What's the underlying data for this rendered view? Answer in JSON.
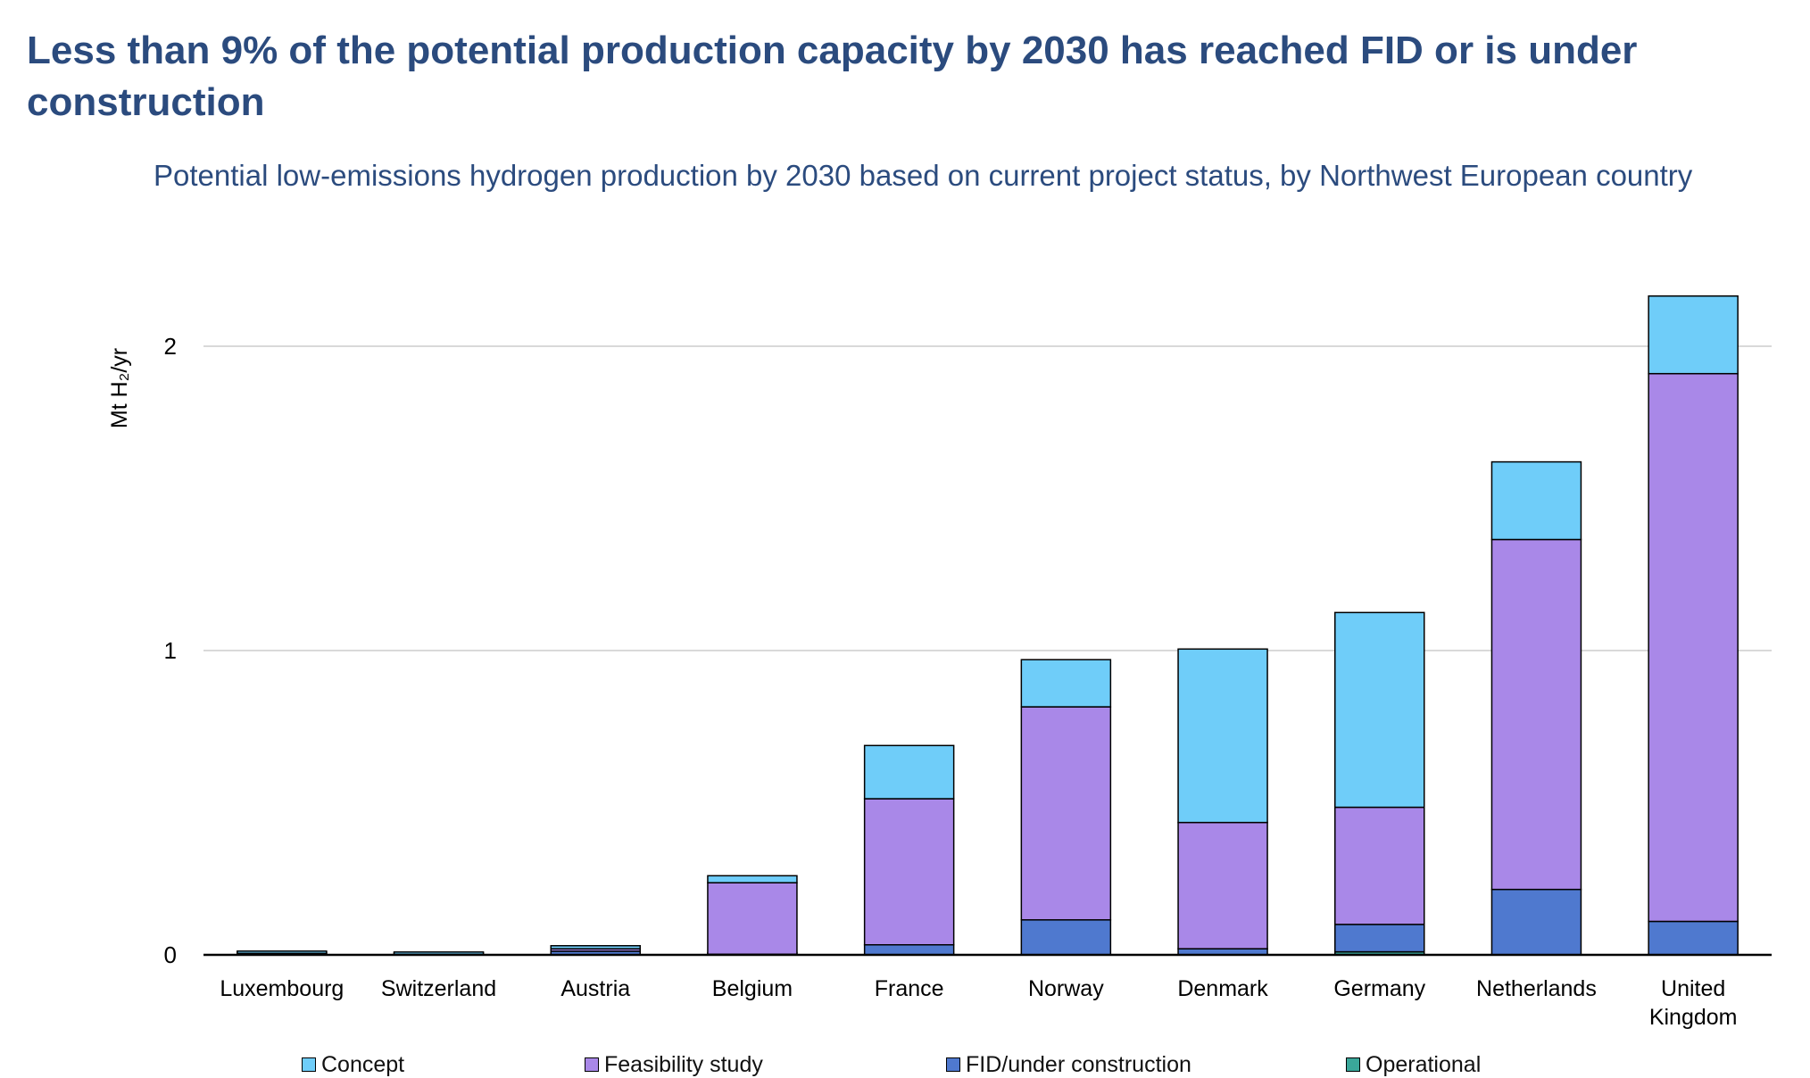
{
  "page": {
    "title": "Less than 9% of the potential production capacity by 2030 has reached FID or is under construction",
    "subtitle": "Potential low-emissions hydrogen production by 2030 based on current project status, by Northwest European country"
  },
  "chart_data": {
    "type": "bar",
    "stacked": true,
    "ylabel": "Mt H₂/yr",
    "ylim": [
      0,
      2.2
    ],
    "yticks": [
      0,
      1,
      2
    ],
    "grid": true,
    "legend_position": "bottom",
    "categories": [
      [
        "Luxembourg"
      ],
      [
        "Switzerland"
      ],
      [
        "Austria"
      ],
      [
        "Belgium"
      ],
      [
        "France"
      ],
      [
        "Norway"
      ],
      [
        "Denmark"
      ],
      [
        "Germany"
      ],
      [
        "Netherlands"
      ],
      [
        "United",
        "Kingdom"
      ]
    ],
    "series": [
      {
        "name": "Operational",
        "color": "#3aa79a",
        "values": [
          0,
          0,
          0,
          0,
          0,
          0,
          0,
          0.01,
          0,
          0
        ]
      },
      {
        "name": "FID/under construction",
        "color": "#4f79cf",
        "values": [
          0.002,
          0,
          0.012,
          0.002,
          0.033,
          0.115,
          0.02,
          0.09,
          0.215,
          0.11
        ]
      },
      {
        "name": "Feasibility study",
        "color": "#a988e8",
        "values": [
          0.003,
          0.002,
          0.008,
          0.235,
          0.48,
          0.7,
          0.415,
          0.385,
          1.15,
          1.8
        ]
      },
      {
        "name": "Concept",
        "color": "#6fcdf9",
        "values": [
          0.003,
          0.001,
          0.01,
          0.023,
          0.175,
          0.155,
          0.57,
          0.64,
          0.255,
          0.255
        ]
      }
    ],
    "legend": [
      "Concept",
      "Feasibility study",
      "FID/under construction",
      "Operational"
    ]
  }
}
